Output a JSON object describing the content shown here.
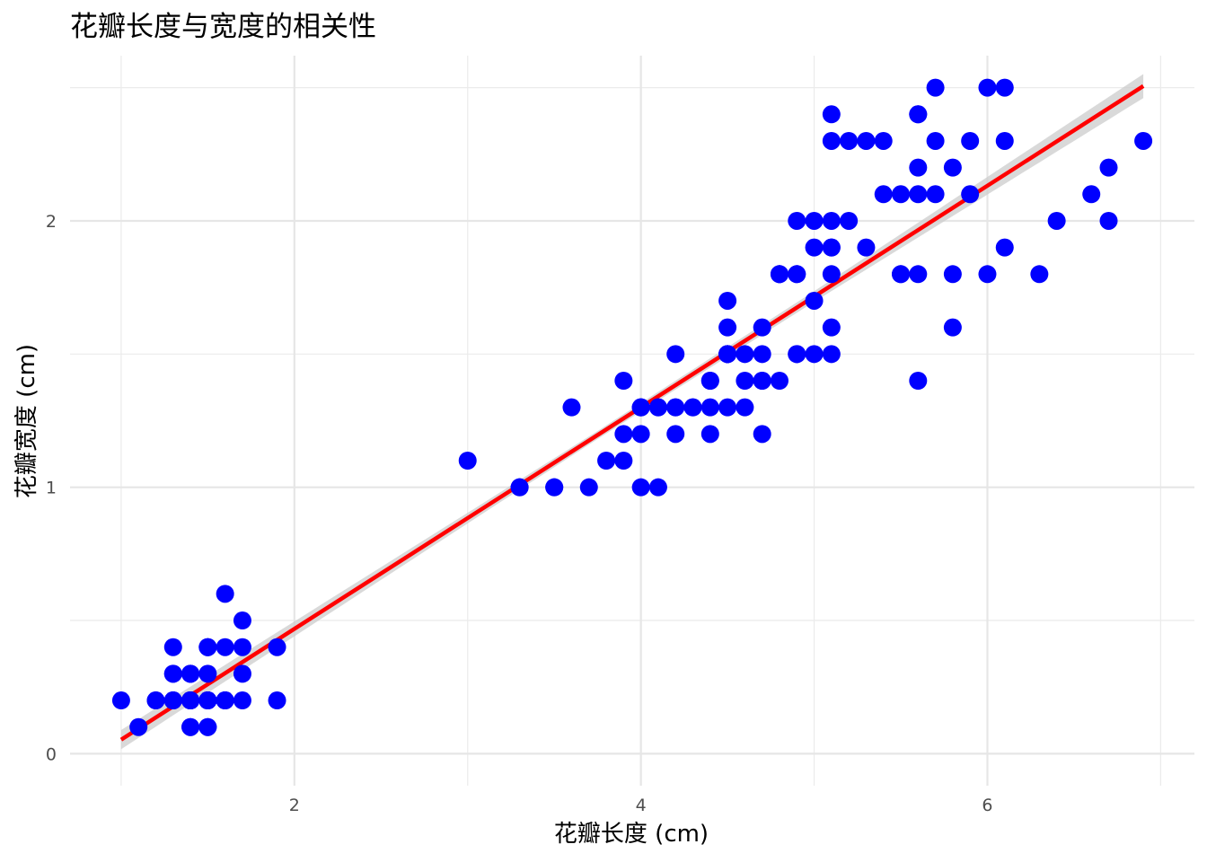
{
  "chart_data": {
    "type": "scatter",
    "title": "花瓣长度与宽度的相关性",
    "xlabel": "花瓣长度 (cm)",
    "ylabel": "花瓣宽度 (cm)",
    "xlim": [
      0.705,
      7.195
    ],
    "ylim": [
      -0.12,
      2.62
    ],
    "x_ticks": [
      2,
      4,
      6
    ],
    "y_ticks": [
      0,
      1,
      2
    ],
    "x_minor_ticks": [
      1,
      3,
      5,
      7
    ],
    "y_minor_ticks": [
      0.5,
      1.5,
      2.5
    ],
    "grid": true,
    "legend": "none",
    "point_color": "#0000ff",
    "line_color": "#ff0000",
    "band_color": "#cccccc",
    "regression": {
      "intercept": -0.363,
      "slope": 0.4158,
      "x_range": [
        1.0,
        6.9
      ],
      "se_band": [
        [
          1.0,
          0.036
        ],
        [
          3.0,
          0.02
        ],
        [
          3.76,
          0.015
        ],
        [
          5.0,
          0.02
        ],
        [
          6.9,
          0.045
        ]
      ]
    },
    "points": [
      [
        1.4,
        0.2
      ],
      [
        1.4,
        0.2
      ],
      [
        1.3,
        0.2
      ],
      [
        1.5,
        0.2
      ],
      [
        1.4,
        0.2
      ],
      [
        1.7,
        0.4
      ],
      [
        1.4,
        0.3
      ],
      [
        1.5,
        0.2
      ],
      [
        1.4,
        0.2
      ],
      [
        1.5,
        0.1
      ],
      [
        1.5,
        0.2
      ],
      [
        1.6,
        0.2
      ],
      [
        1.4,
        0.1
      ],
      [
        1.1,
        0.1
      ],
      [
        1.2,
        0.2
      ],
      [
        1.5,
        0.4
      ],
      [
        1.3,
        0.4
      ],
      [
        1.4,
        0.3
      ],
      [
        1.7,
        0.3
      ],
      [
        1.5,
        0.3
      ],
      [
        1.7,
        0.2
      ],
      [
        1.5,
        0.4
      ],
      [
        1.0,
        0.2
      ],
      [
        1.7,
        0.5
      ],
      [
        1.9,
        0.2
      ],
      [
        1.6,
        0.2
      ],
      [
        1.6,
        0.4
      ],
      [
        1.5,
        0.2
      ],
      [
        1.4,
        0.2
      ],
      [
        1.6,
        0.2
      ],
      [
        1.6,
        0.2
      ],
      [
        1.5,
        0.4
      ],
      [
        1.5,
        0.1
      ],
      [
        1.4,
        0.2
      ],
      [
        1.5,
        0.2
      ],
      [
        1.2,
        0.2
      ],
      [
        1.3,
        0.2
      ],
      [
        1.4,
        0.1
      ],
      [
        1.3,
        0.2
      ],
      [
        1.5,
        0.2
      ],
      [
        1.3,
        0.3
      ],
      [
        1.3,
        0.3
      ],
      [
        1.3,
        0.2
      ],
      [
        1.6,
        0.6
      ],
      [
        1.9,
        0.4
      ],
      [
        1.4,
        0.3
      ],
      [
        1.6,
        0.2
      ],
      [
        1.4,
        0.2
      ],
      [
        1.5,
        0.2
      ],
      [
        1.4,
        0.2
      ],
      [
        4.7,
        1.4
      ],
      [
        4.5,
        1.5
      ],
      [
        4.9,
        1.5
      ],
      [
        4.0,
        1.3
      ],
      [
        4.6,
        1.5
      ],
      [
        4.5,
        1.3
      ],
      [
        4.7,
        1.6
      ],
      [
        3.3,
        1.0
      ],
      [
        4.6,
        1.3
      ],
      [
        3.9,
        1.4
      ],
      [
        3.5,
        1.0
      ],
      [
        4.2,
        1.5
      ],
      [
        4.0,
        1.0
      ],
      [
        4.7,
        1.4
      ],
      [
        3.6,
        1.3
      ],
      [
        4.4,
        1.4
      ],
      [
        4.5,
        1.5
      ],
      [
        4.1,
        1.0
      ],
      [
        4.5,
        1.5
      ],
      [
        3.9,
        1.1
      ],
      [
        4.8,
        1.8
      ],
      [
        4.0,
        1.3
      ],
      [
        4.9,
        1.5
      ],
      [
        4.7,
        1.2
      ],
      [
        4.3,
        1.3
      ],
      [
        4.4,
        1.4
      ],
      [
        4.8,
        1.4
      ],
      [
        5.0,
        1.7
      ],
      [
        4.5,
        1.5
      ],
      [
        3.5,
        1.0
      ],
      [
        3.8,
        1.1
      ],
      [
        3.7,
        1.0
      ],
      [
        3.9,
        1.2
      ],
      [
        5.1,
        1.6
      ],
      [
        4.5,
        1.5
      ],
      [
        4.5,
        1.6
      ],
      [
        4.7,
        1.5
      ],
      [
        4.4,
        1.3
      ],
      [
        4.1,
        1.3
      ],
      [
        4.0,
        1.3
      ],
      [
        4.4,
        1.2
      ],
      [
        4.6,
        1.4
      ],
      [
        4.0,
        1.2
      ],
      [
        3.3,
        1.0
      ],
      [
        4.2,
        1.3
      ],
      [
        4.2,
        1.2
      ],
      [
        4.2,
        1.3
      ],
      [
        4.3,
        1.3
      ],
      [
        3.0,
        1.1
      ],
      [
        4.1,
        1.3
      ],
      [
        6.0,
        2.5
      ],
      [
        5.1,
        1.9
      ],
      [
        5.9,
        2.1
      ],
      [
        5.6,
        1.8
      ],
      [
        5.8,
        2.2
      ],
      [
        6.6,
        2.1
      ],
      [
        4.5,
        1.7
      ],
      [
        6.3,
        1.8
      ],
      [
        5.8,
        1.8
      ],
      [
        6.1,
        2.5
      ],
      [
        5.1,
        2.0
      ],
      [
        5.3,
        1.9
      ],
      [
        5.5,
        2.1
      ],
      [
        5.0,
        2.0
      ],
      [
        5.1,
        2.4
      ],
      [
        5.3,
        2.3
      ],
      [
        5.5,
        1.8
      ],
      [
        6.7,
        2.2
      ],
      [
        6.9,
        2.3
      ],
      [
        5.0,
        1.5
      ],
      [
        5.7,
        2.3
      ],
      [
        4.9,
        2.0
      ],
      [
        6.7,
        2.0
      ],
      [
        4.9,
        1.8
      ],
      [
        5.7,
        2.1
      ],
      [
        6.0,
        1.8
      ],
      [
        4.8,
        1.8
      ],
      [
        4.9,
        1.8
      ],
      [
        5.6,
        2.1
      ],
      [
        5.8,
        1.6
      ],
      [
        6.1,
        1.9
      ],
      [
        6.4,
        2.0
      ],
      [
        5.6,
        2.2
      ],
      [
        5.1,
        1.5
      ],
      [
        5.6,
        1.4
      ],
      [
        6.1,
        2.3
      ],
      [
        5.6,
        2.4
      ],
      [
        5.5,
        1.8
      ],
      [
        4.8,
        1.8
      ],
      [
        5.4,
        2.1
      ],
      [
        5.6,
        2.4
      ],
      [
        5.1,
        2.3
      ],
      [
        5.1,
        1.9
      ],
      [
        5.9,
        2.3
      ],
      [
        5.7,
        2.5
      ],
      [
        5.2,
        2.3
      ],
      [
        5.0,
        1.9
      ],
      [
        5.2,
        2.0
      ],
      [
        5.4,
        2.3
      ],
      [
        5.1,
        1.8
      ]
    ]
  }
}
